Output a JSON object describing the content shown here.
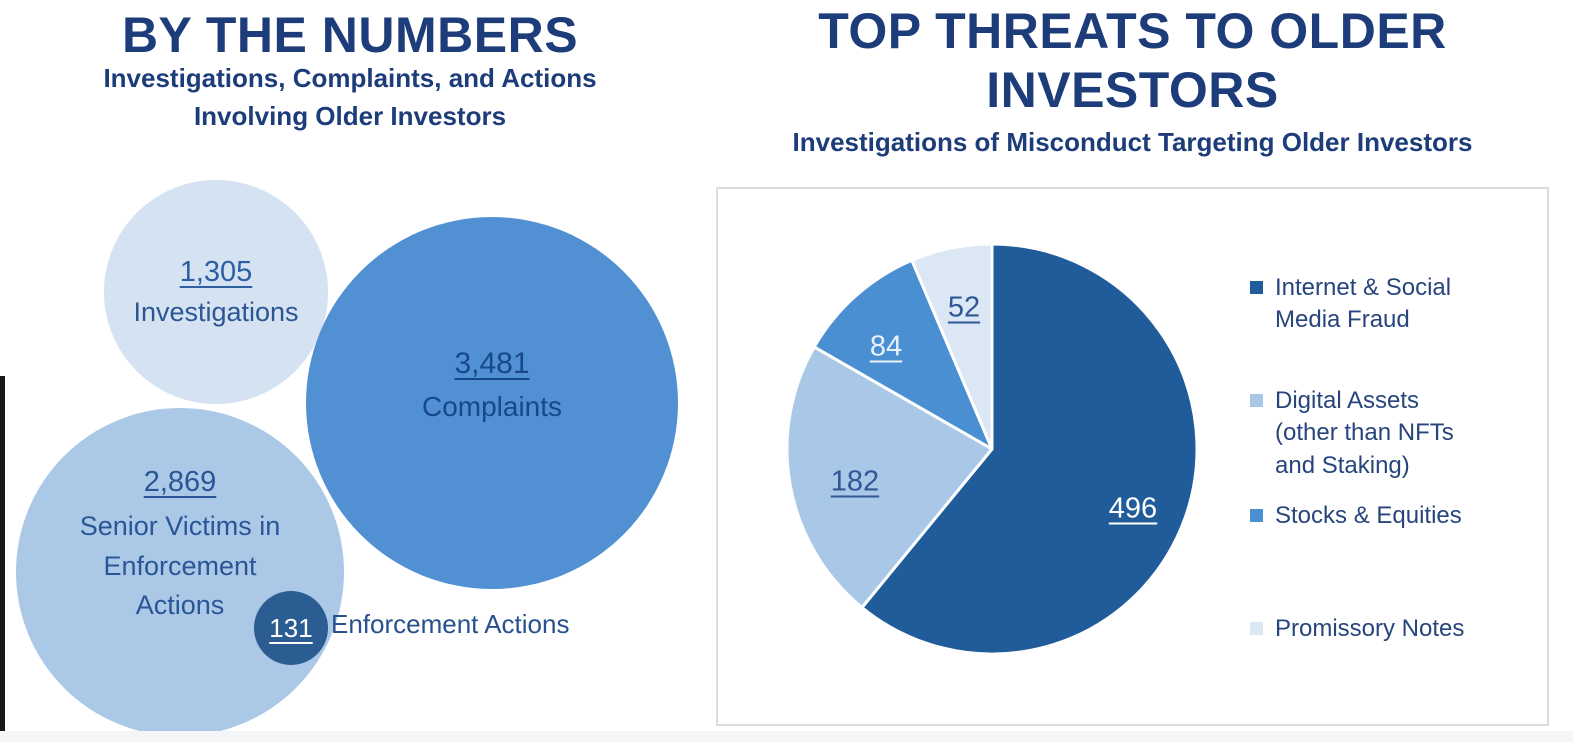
{
  "left_chart": {
    "title": "BY THE NUMBERS",
    "subtitle": "Investigations, Complaints, and Actions\nInvolving Older Investors",
    "bubbles": {
      "investigations": {
        "display": "1,305",
        "label": "Investigations",
        "color": "#d4e2f2"
      },
      "complaints": {
        "display": "3,481",
        "label": "Complaints",
        "color": "#5191d3"
      },
      "senior_victims": {
        "display": "2,869",
        "label": "Senior Victims in\nEnforcement\nActions",
        "color": "#abc9e7"
      },
      "enforcement": {
        "display": "131",
        "label": "Enforcement Actions",
        "color": "#2b5d93"
      }
    }
  },
  "right_chart": {
    "title": "TOP THREATS TO OLDER\nINVESTORS",
    "subtitle": "Investigations of Misconduct Targeting Older Investors",
    "legend": [
      {
        "label": "Internet & Social\nMedia Fraud",
        "color": "#1f5c99"
      },
      {
        "label": "Digital Assets\n(other than NFTs\nand Staking)",
        "color": "#a9c8e8"
      },
      {
        "label": "Stocks & Equities",
        "color": "#4a8fd2"
      },
      {
        "label": "Promissory Notes",
        "color": "#dbe7f4"
      }
    ]
  },
  "chart_data": [
    {
      "type": "bubble",
      "title": "BY THE NUMBERS",
      "subtitle": "Investigations, Complaints, and Actions Involving Older Investors",
      "points": [
        {
          "label": "Investigations",
          "value": 1305
        },
        {
          "label": "Complaints",
          "value": 3481
        },
        {
          "label": "Senior Victims in Enforcement Actions",
          "value": 2869
        },
        {
          "label": "Enforcement Actions",
          "value": 131
        }
      ]
    },
    {
      "type": "pie",
      "title": "TOP THREATS TO OLDER INVESTORS",
      "subtitle": "Investigations of Misconduct Targeting Older Investors",
      "categories": [
        "Internet & Social Media Fraud",
        "Digital Assets (other than NFTs and Staking)",
        "Stocks & Equities",
        "Promissory Notes"
      ],
      "values": [
        496,
        182,
        84,
        52
      ],
      "colors": [
        "#1f5c99",
        "#a9c8e8",
        "#4a8fd2",
        "#dbe7f4"
      ],
      "data_labels": [
        "496",
        "182",
        "84",
        "52"
      ],
      "data_label_colors": [
        "#ffffff",
        "#2f5795",
        "#e9f1fb",
        "#2f5795"
      ],
      "start_angle_deg": 0,
      "direction": "clockwise",
      "legend_position": "right",
      "grid": false
    }
  ]
}
